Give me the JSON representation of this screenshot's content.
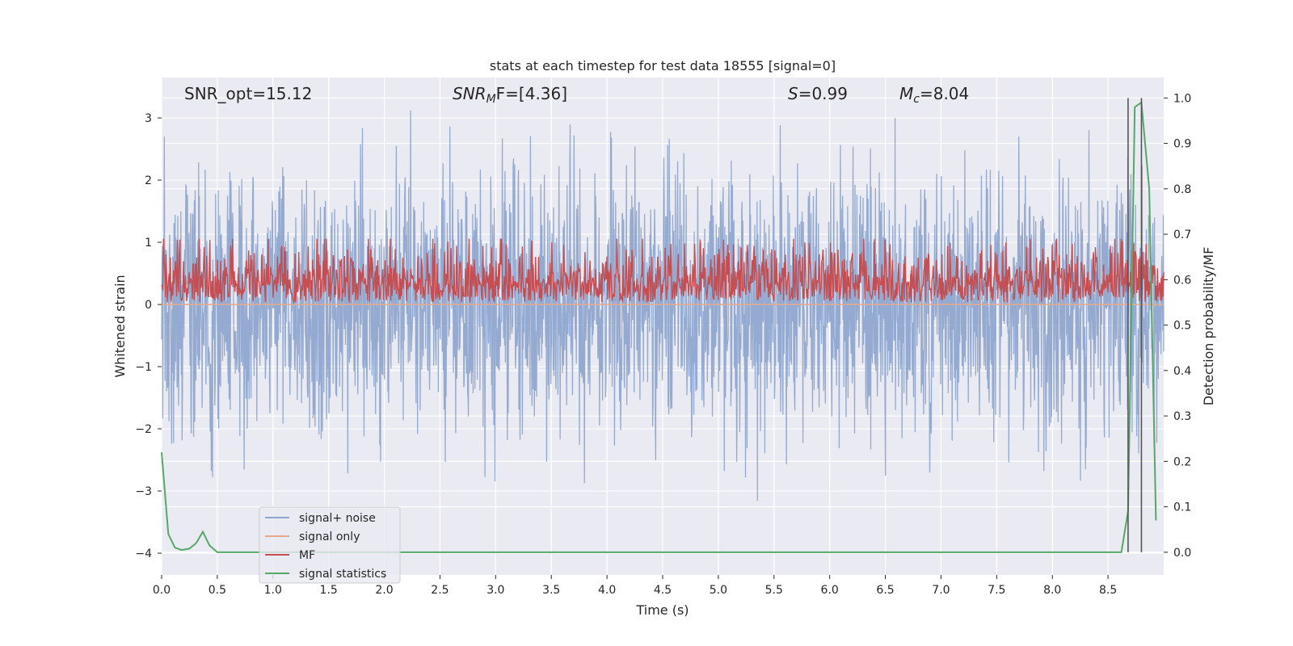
{
  "chart_data": {
    "type": "line",
    "title": "stats at each timestep for test data 18555 [signal=0]",
    "xlabel": "Time (s)",
    "ylabel_left": "Whitened strain",
    "ylabel_right": "Detection probability/MF",
    "xlim": [
      0,
      9.0
    ],
    "ylim_left": [
      -4.35,
      3.65
    ],
    "ylim_right": [
      -0.05,
      1.045
    ],
    "x_ticks": [
      0.0,
      0.5,
      1.0,
      1.5,
      2.0,
      2.5,
      3.0,
      3.5,
      4.0,
      4.5,
      5.0,
      5.5,
      6.0,
      6.5,
      7.0,
      7.5,
      8.0,
      8.5
    ],
    "x_tick_labels": [
      "0.0",
      "0.5",
      "1.0",
      "1.5",
      "2.0",
      "2.5",
      "3.0",
      "3.5",
      "4.0",
      "4.5",
      "5.0",
      "5.5",
      "6.0",
      "6.5",
      "7.0",
      "7.5",
      "8.0",
      "8.5"
    ],
    "y_left_ticks": [
      3,
      2,
      1,
      0,
      -1,
      -2,
      -3,
      -4
    ],
    "y_left_tick_labels": [
      "3",
      "2",
      "1",
      "0",
      "−1",
      "−2",
      "−3",
      "−4"
    ],
    "y_right_ticks": [
      1.0,
      0.9,
      0.8,
      0.7,
      0.6,
      0.5,
      0.4,
      0.3,
      0.2,
      0.1,
      0.0
    ],
    "y_right_tick_labels": [
      "1.0",
      "0.9",
      "0.8",
      "0.7",
      "0.6",
      "0.5",
      "0.4",
      "0.3",
      "0.2",
      "0.1",
      "0.0"
    ],
    "annotations": {
      "snr_opt": "SNR_opt=15.12",
      "snr_mf_main": "SNR",
      "snr_mf_sub": "M",
      "snr_mf_rest": "F=[4.36]",
      "s_main": "S",
      "s_rest": "=0.99",
      "mc_main": "M",
      "mc_sub": "c",
      "mc_rest": "=8.04"
    },
    "legend": [
      "signal+ noise",
      "signal only",
      "MF",
      "signal statistics"
    ],
    "legend_position": "lower-left",
    "grid": true,
    "series": [
      {
        "name": "signal+ noise",
        "axis": "left",
        "color": "#8fa6cf",
        "x_range": [
          0,
          9.0
        ],
        "amplitude": 1.05,
        "peak_max": 3.28,
        "peak_min": -3.45
      },
      {
        "name": "signal only",
        "axis": "left",
        "color": "#e8a98a",
        "x": [
          0,
          9.0
        ],
        "y": [
          0,
          0
        ]
      },
      {
        "name": "MF",
        "axis": "right",
        "color": "#c44e52",
        "x_range": [
          0,
          9.0
        ],
        "base": 0.55,
        "amplitude": 0.06,
        "peak_max": 0.69
      },
      {
        "name": "signal statistics",
        "axis": "right",
        "color": "#55a868",
        "x": [
          0.0,
          0.06,
          0.12,
          0.18,
          0.25,
          0.31,
          0.37,
          0.43,
          0.5,
          0.56,
          1.0,
          2.0,
          3.0,
          4.0,
          5.0,
          6.0,
          7.0,
          8.0,
          8.5,
          8.62,
          8.68,
          8.74,
          8.8,
          8.87,
          8.93
        ],
        "y": [
          0.22,
          0.04,
          0.01,
          0.005,
          0.008,
          0.02,
          0.045,
          0.015,
          0.0,
          0.0,
          0.0,
          0.0,
          0.0,
          0.0,
          0.0,
          0.0,
          0.0,
          0.0,
          0.0,
          0.0,
          0.09,
          0.98,
          0.99,
          0.8,
          0.07
        ]
      }
    ],
    "vertical_lines": [
      8.68,
      8.8
    ],
    "vertical_line_color": "#555555"
  }
}
